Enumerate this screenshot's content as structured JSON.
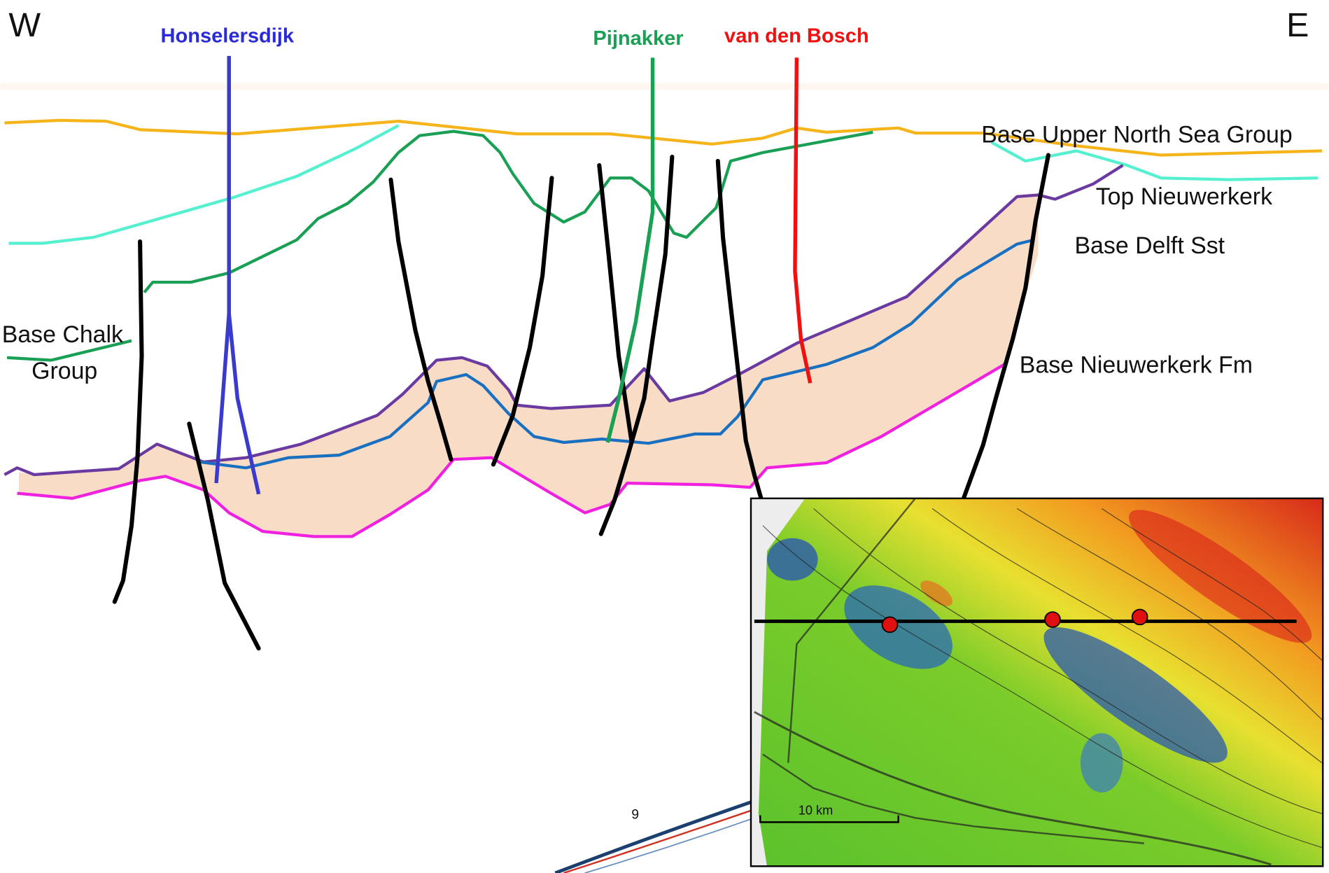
{
  "directions": {
    "west": "W",
    "east": "E"
  },
  "wells": [
    {
      "label": "Honselersdijk"
    },
    {
      "label": "Pijnakker"
    },
    {
      "label": "van den Bosch"
    }
  ],
  "horizons": [
    {
      "label": "Base Upper North Sea Group"
    },
    {
      "label": "Top Nieuwerkerk"
    },
    {
      "label": "Base Delft Sst"
    },
    {
      "label": "Base Nieuwerkerk Fm"
    }
  ],
  "base_chalk_group": {
    "lines": [
      "Base Chalk",
      "Group"
    ]
  },
  "map": {
    "scale_label": "10 km"
  },
  "page_number": "9"
}
